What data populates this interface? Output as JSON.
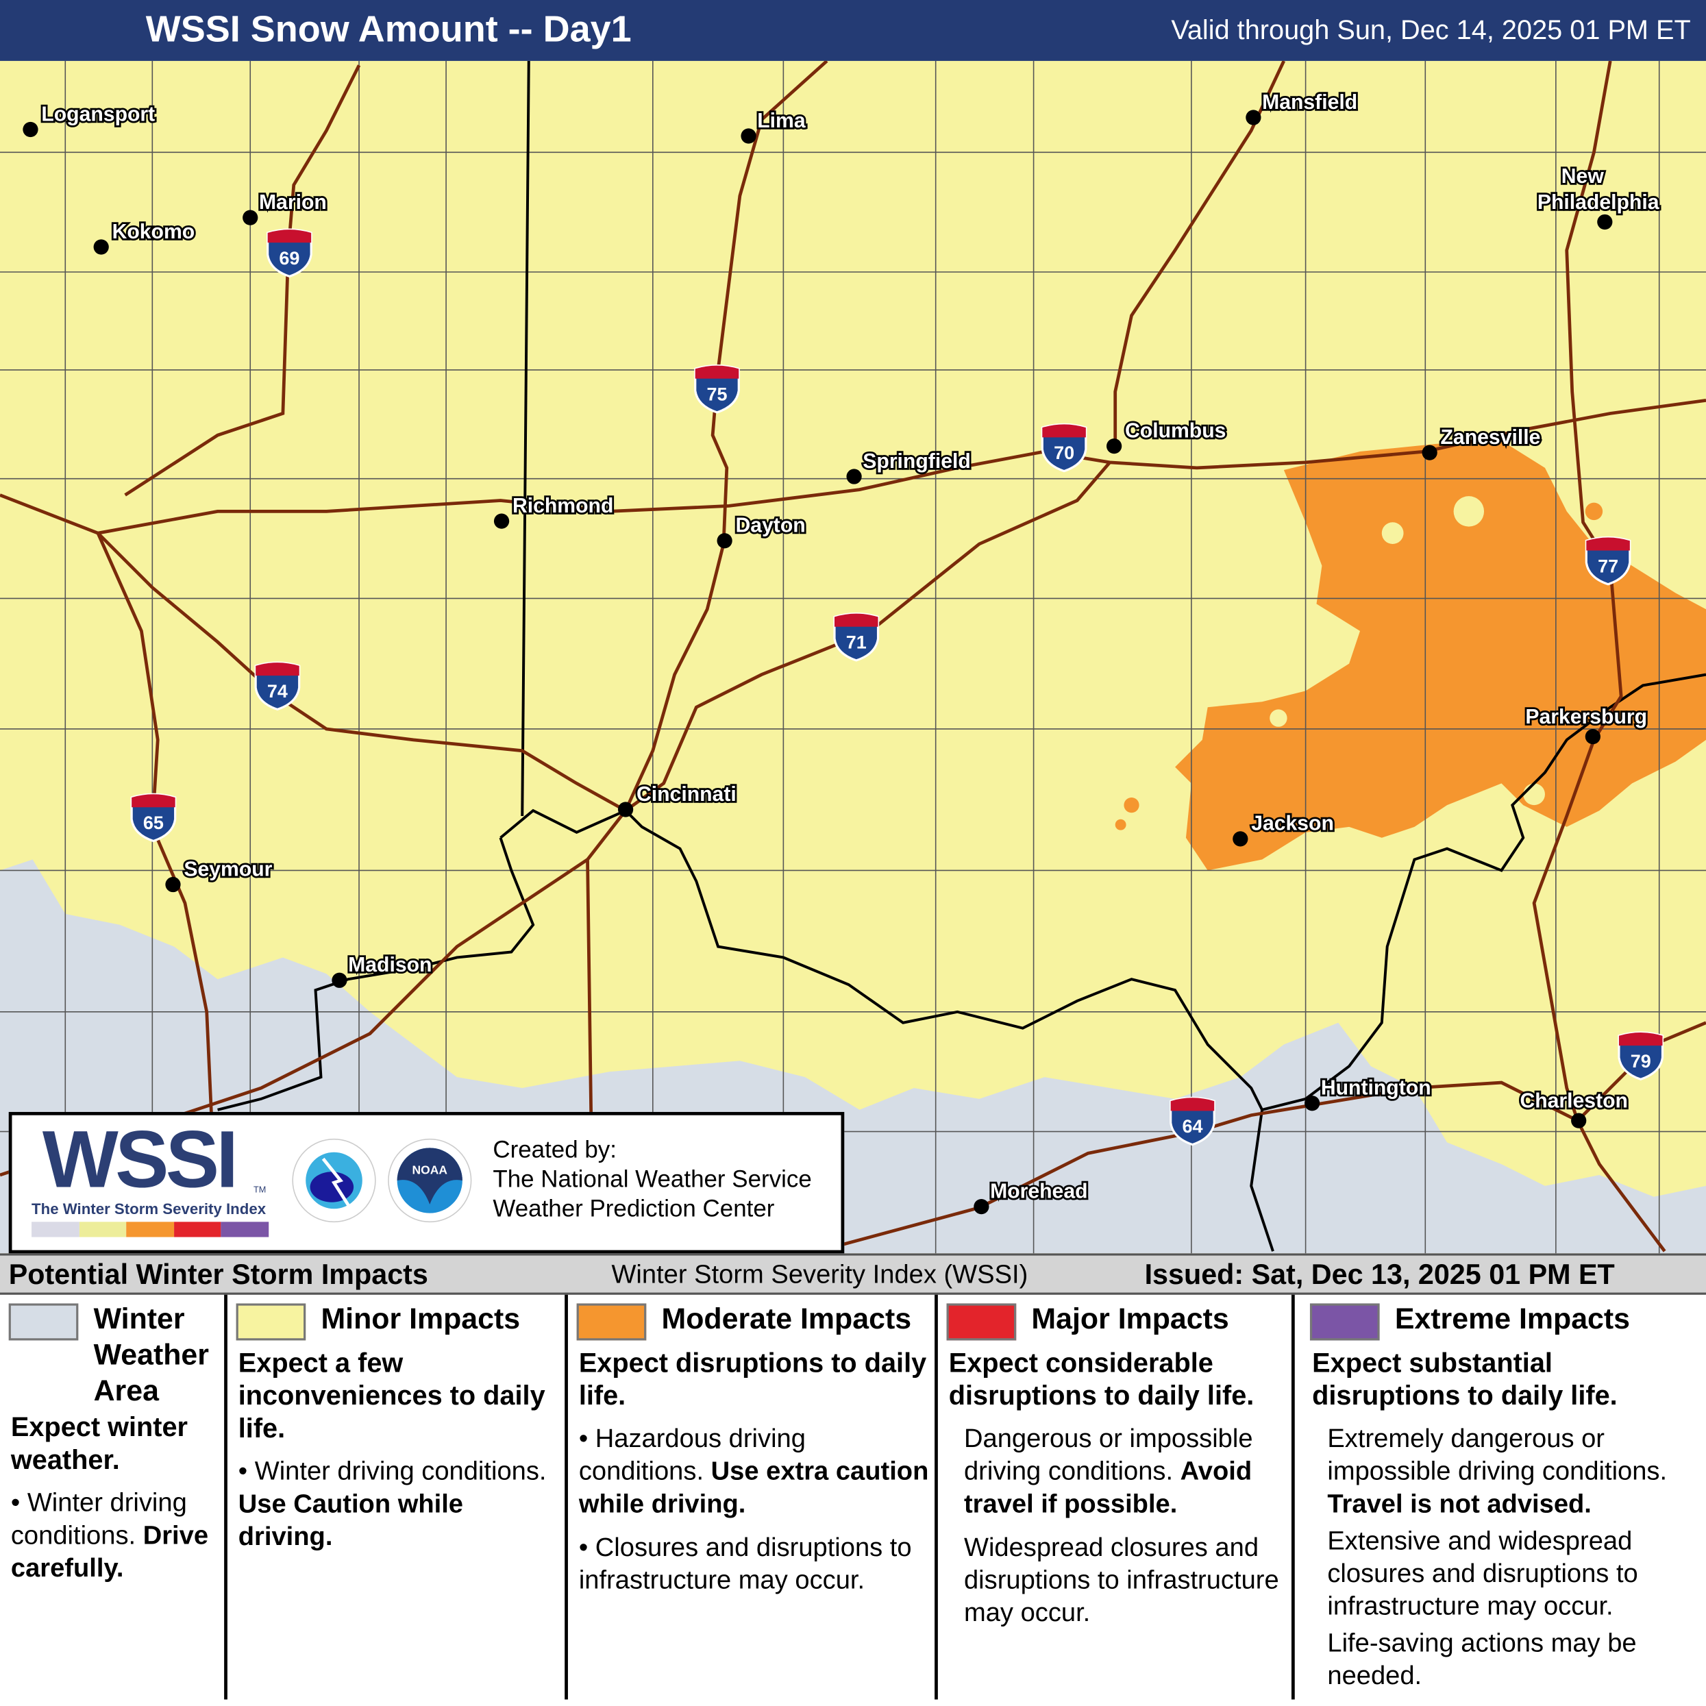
{
  "header": {
    "title": "WSSI Snow Amount -- Day1",
    "valid": "Valid through Sun, Dec 14, 2025 01 PM ET"
  },
  "colors": {
    "header": "#243b74",
    "winter_weather_area": "#d6dde6",
    "minor": "#f7f3a0",
    "moderate": "#f5962f",
    "major": "#e3242b",
    "extreme": "#7b55a6",
    "roads": "#7a2a0a"
  },
  "cities": [
    "Logansport",
    "Kokomo",
    "Marion",
    "Lima",
    "Mansfield",
    "New Philadelphia",
    "Columbus",
    "Zanesville",
    "Springfield",
    "Richmond",
    "Dayton",
    "Cincinnati",
    "Seymour",
    "Madison",
    "Jackson",
    "Parkersburg",
    "Huntington",
    "Charleston",
    "Morehead"
  ],
  "interstates": [
    "69",
    "75",
    "70",
    "77",
    "71",
    "74",
    "65",
    "64",
    "79"
  ],
  "logo": {
    "wssi": "WSSI",
    "tm": "TM",
    "subtitle": "The Winter Storm Severity Index",
    "created_by": "Created by:",
    "org1": "The National Weather Service",
    "org2": "Weather Prediction Center",
    "nws_ring": "NATIONAL WEATHER SERVICE",
    "noaa": "NOAA"
  },
  "legend": {
    "title": "Potential Winter Storm Impacts",
    "center": "Winter Storm Severity Index (WSSI)",
    "issued": "Issued: Sat, Dec 13, 2025 01 PM ET",
    "columns": [
      {
        "title": "Winter Weather Area",
        "summary": "Expect winter weather.",
        "b1": "Winter driving conditions.",
        "b1_bold": "Drive carefully."
      },
      {
        "title": "Minor Impacts",
        "summary": "Expect a few inconveniences to daily life.",
        "b1": "Winter driving conditions.",
        "b1_bold": "Use Caution while driving."
      },
      {
        "title": "Moderate Impacts",
        "summary": "Expect disruptions to daily life.",
        "b1": "Hazardous driving conditions.",
        "b1_bold": "Use extra caution while driving.",
        "b2": "Closures and disruptions to infrastructure may occur."
      },
      {
        "title": "Major Impacts",
        "summary": "Expect considerable disruptions to daily life.",
        "b1": "Dangerous or impossible driving conditions.",
        "b1_bold": "Avoid travel if possible.",
        "b2": "Widespread closures and disruptions to infrastructure may occur."
      },
      {
        "title": "Extreme Impacts",
        "summary": "Expect substantial disruptions to daily life.",
        "b1": "Extremely dangerous or impossible driving conditions.",
        "b1_bold": "Travel is not advised.",
        "b2": "Extensive and widespread closures and disruptions to infrastructure may occur.",
        "b3": "Life-saving actions may be needed."
      }
    ]
  }
}
